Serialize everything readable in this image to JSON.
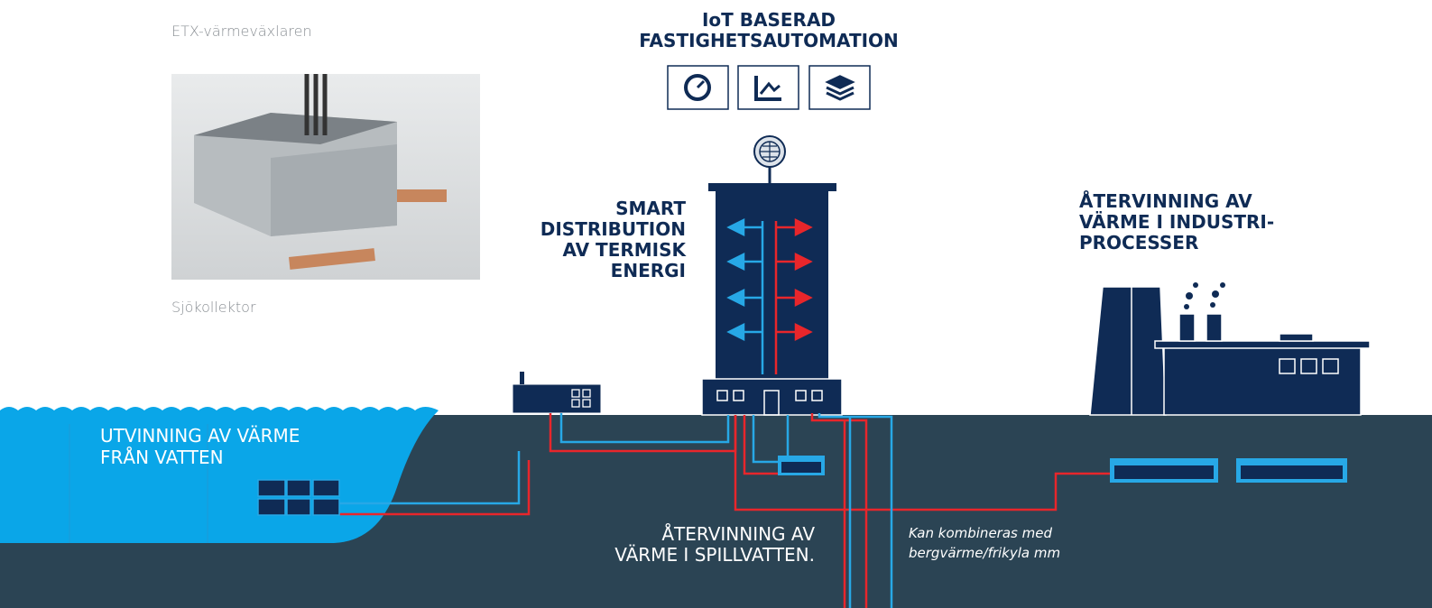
{
  "photo_caption_top": "ETX-värmeväxlaren",
  "photo_caption_bottom": "Sjökollektor",
  "iot_heading": {
    "lines": [
      "IoT BASERAD",
      "FASTIGHETSAUTOMATION"
    ]
  },
  "distribution_heading": {
    "lines": [
      "SMART",
      "DISTRIBUTION",
      "AV TERMISK",
      "ENERGI"
    ]
  },
  "industry_heading": {
    "lines": [
      "ÅTERVINNING AV",
      "VÄRME I INDUSTRI-",
      "PROCESSER"
    ]
  },
  "water_heading": {
    "lines": [
      "UTVINNING AV VÄRME",
      "FRÅN VATTEN"
    ]
  },
  "wastewater_heading": {
    "lines": [
      "ÅTERVINNING AV",
      "VÄRME I SPILLVATTEN."
    ]
  },
  "note": {
    "lines": [
      "Kan kombineras med",
      "bergvärme/frikyla mm"
    ]
  }
}
